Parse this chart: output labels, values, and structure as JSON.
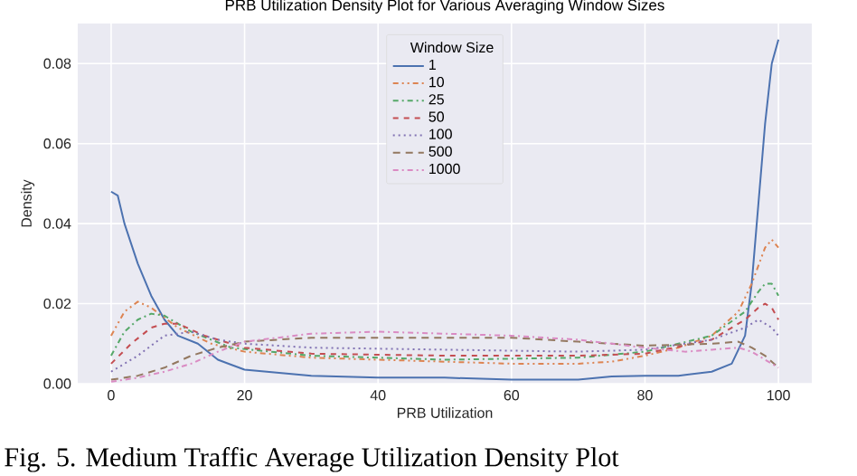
{
  "chart_data": {
    "type": "line",
    "title": "PRB Utilization Density Plot for Various Averaging Window Sizes",
    "xlabel": "PRB Utilization",
    "ylabel": "Density",
    "legend_title": "Window Size",
    "legend": "top",
    "grid": true,
    "annotations": [
      "Fig. 5. Medium Traffic Average Utilization Density Plot"
    ],
    "xlim": [
      -5,
      105
    ],
    "ylim": [
      0,
      0.09
    ],
    "xticks": [
      0,
      20,
      40,
      60,
      80,
      100
    ],
    "yticks": [
      {
        "value": 0,
        "label": "0.00"
      },
      {
        "value": 0.02,
        "label": "0.02"
      },
      {
        "value": 0.04,
        "label": "0.04"
      },
      {
        "value": 0.06,
        "label": "0.06"
      },
      {
        "value": 0.08,
        "label": "0.08"
      }
    ],
    "series": [
      {
        "name": "1",
        "color": "#4c72b0",
        "line_style": "solid",
        "x": [
          0,
          1,
          2,
          4,
          6,
          8,
          10,
          13,
          16,
          20,
          30,
          40,
          50,
          60,
          70,
          75,
          80,
          85,
          90,
          93,
          95,
          96,
          97,
          98,
          99,
          100
        ],
        "values": [
          0.048,
          0.047,
          0.04,
          0.03,
          0.022,
          0.016,
          0.012,
          0.01,
          0.006,
          0.0035,
          0.002,
          0.0015,
          0.0015,
          0.001,
          0.001,
          0.0018,
          0.002,
          0.002,
          0.003,
          0.005,
          0.012,
          0.025,
          0.045,
          0.065,
          0.08,
          0.086
        ]
      },
      {
        "name": "10",
        "color": "#dd8452",
        "line_style": "dashdotdot",
        "x": [
          0,
          2,
          4,
          6,
          10,
          15,
          20,
          30,
          40,
          50,
          60,
          70,
          75,
          80,
          85,
          90,
          94,
          96,
          98,
          99,
          100
        ],
        "values": [
          0.012,
          0.018,
          0.0205,
          0.019,
          0.014,
          0.01,
          0.008,
          0.0065,
          0.006,
          0.0055,
          0.005,
          0.005,
          0.0055,
          0.007,
          0.009,
          0.012,
          0.018,
          0.025,
          0.034,
          0.036,
          0.034
        ]
      },
      {
        "name": "25",
        "color": "#55a868",
        "line_style": "dashdot",
        "x": [
          0,
          2,
          4,
          6,
          8,
          12,
          18,
          30,
          50,
          70,
          80,
          90,
          95,
          97,
          98,
          99,
          100
        ],
        "values": [
          0.007,
          0.013,
          0.016,
          0.0175,
          0.017,
          0.013,
          0.009,
          0.007,
          0.006,
          0.0065,
          0.008,
          0.012,
          0.018,
          0.023,
          0.025,
          0.025,
          0.022
        ]
      },
      {
        "name": "50",
        "color": "#c44e52",
        "line_style": "dashed",
        "x": [
          0,
          3,
          6,
          8,
          10,
          14,
          20,
          30,
          50,
          70,
          80,
          90,
          95,
          97,
          98,
          99,
          100
        ],
        "values": [
          0.005,
          0.01,
          0.014,
          0.015,
          0.015,
          0.012,
          0.009,
          0.0075,
          0.007,
          0.007,
          0.0075,
          0.011,
          0.016,
          0.019,
          0.02,
          0.019,
          0.016
        ]
      },
      {
        "name": "100",
        "color": "#8172b3",
        "line_style": "dotted",
        "x": [
          0,
          4,
          8,
          12,
          16,
          20,
          30,
          50,
          70,
          80,
          90,
          95,
          97,
          99,
          100
        ],
        "values": [
          0.003,
          0.007,
          0.012,
          0.013,
          0.011,
          0.01,
          0.009,
          0.0085,
          0.008,
          0.0085,
          0.011,
          0.014,
          0.016,
          0.014,
          0.012
        ]
      },
      {
        "name": "500",
        "color": "#937860",
        "line_style": "loosely dashed",
        "x": [
          0,
          4,
          8,
          12,
          16,
          20,
          30,
          40,
          50,
          60,
          70,
          80,
          90,
          94,
          96,
          98,
          100
        ],
        "values": [
          0.001,
          0.002,
          0.004,
          0.007,
          0.009,
          0.0105,
          0.0115,
          0.0115,
          0.0115,
          0.0115,
          0.0105,
          0.0095,
          0.01,
          0.0105,
          0.009,
          0.007,
          0.004
        ]
      },
      {
        "name": "1000",
        "color": "#da8bc3",
        "line_style": "dashdot",
        "x": [
          0,
          4,
          8,
          12,
          16,
          20,
          30,
          40,
          50,
          60,
          70,
          80,
          86,
          90,
          94,
          96,
          98,
          100
        ],
        "values": [
          0.0005,
          0.0015,
          0.003,
          0.005,
          0.008,
          0.0105,
          0.0125,
          0.013,
          0.0125,
          0.012,
          0.011,
          0.009,
          0.008,
          0.0085,
          0.009,
          0.008,
          0.006,
          0.004
        ]
      }
    ]
  }
}
